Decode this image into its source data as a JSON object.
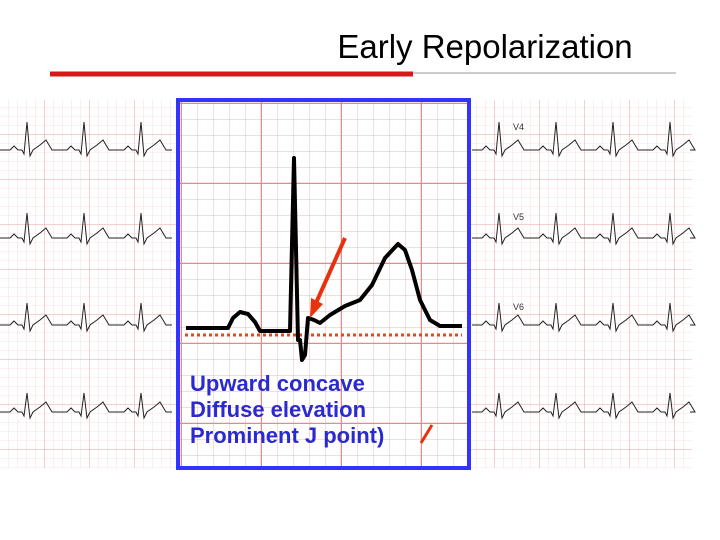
{
  "header": {
    "title": "Early Repolarization"
  },
  "ecg": {
    "lead_labels": [
      "V4",
      "V5",
      "V6"
    ]
  },
  "callout": {
    "lines": [
      "Upward concave",
      "Diffuse elevation",
      "Prominent J point)"
    ]
  }
}
